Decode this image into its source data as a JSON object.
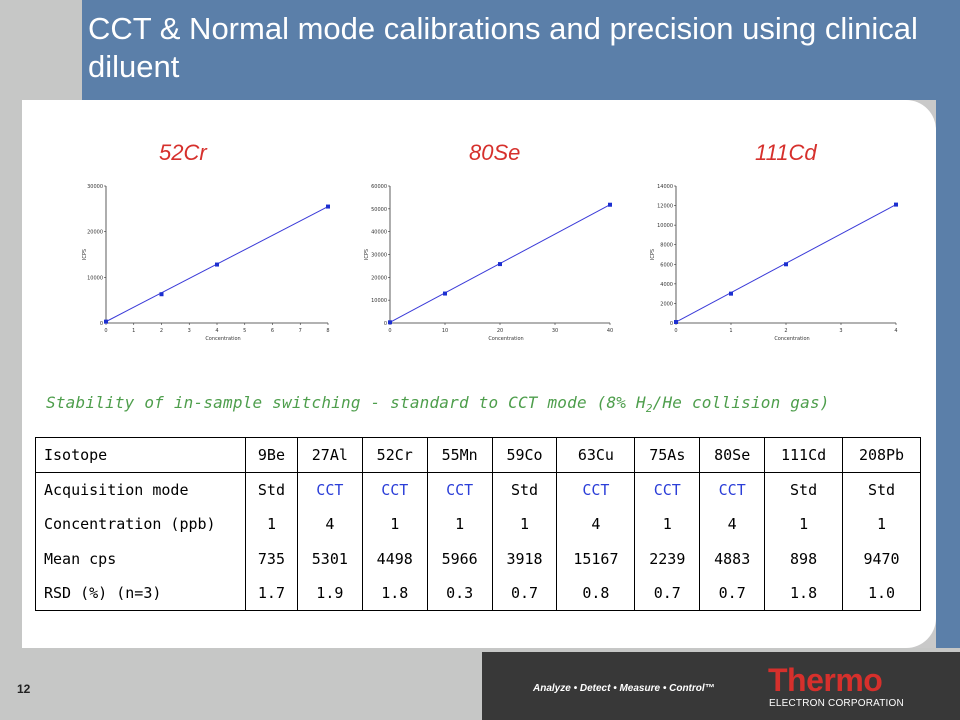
{
  "title": "CCT & Normal mode calibrations and precision using clinical diluent",
  "chart_data": [
    {
      "type": "scatter",
      "title": "52Cr",
      "xlabel": "Concentration",
      "ylabel": "ICPS",
      "xlim": [
        0,
        8
      ],
      "ylim": [
        0,
        30000
      ],
      "x_ticks": [
        "0",
        "1",
        "2",
        "3",
        "4",
        "5",
        "6",
        "7",
        "8"
      ],
      "y_ticks": [
        "0",
        "10000",
        "20000",
        "30000"
      ],
      "y_tick_values": [
        0,
        10000,
        20000,
        30000
      ],
      "x": [
        0,
        2,
        4,
        8
      ],
      "y": [
        300,
        6300,
        12800,
        25500
      ],
      "fit_line": true
    },
    {
      "type": "scatter",
      "title": "80Se",
      "xlabel": "Concentration",
      "ylabel": "ICPS",
      "xlim": [
        0,
        40
      ],
      "ylim": [
        0,
        60000
      ],
      "x_ticks": [
        "0",
        "10",
        "20",
        "30",
        "40"
      ],
      "y_ticks": [
        "0",
        "10000",
        "20000",
        "30000",
        "40000",
        "50000",
        "60000"
      ],
      "y_tick_values": [
        0,
        10000,
        20000,
        30000,
        40000,
        50000,
        60000
      ],
      "x": [
        0,
        10,
        20,
        40
      ],
      "y": [
        300,
        12900,
        25800,
        51800
      ],
      "fit_line": true
    },
    {
      "type": "scatter",
      "title": "111Cd",
      "xlabel": "Concentration",
      "ylabel": "ICPS",
      "xlim": [
        0,
        4
      ],
      "ylim": [
        0,
        14000
      ],
      "x_ticks": [
        "0",
        "1",
        "2",
        "3",
        "4"
      ],
      "y_ticks": [
        "0",
        "2000",
        "4000",
        "6000",
        "8000",
        "10000",
        "12000",
        "14000"
      ],
      "y_tick_values": [
        0,
        2000,
        4000,
        6000,
        8000,
        10000,
        12000,
        14000
      ],
      "x": [
        0,
        1,
        2,
        4
      ],
      "y": [
        100,
        3000,
        6000,
        12100
      ],
      "fit_line": true
    }
  ],
  "subtitle": {
    "before": "Stability of in-sample switching - standard to CCT mode (8% H",
    "sub": "2",
    "after": "/He collision gas)"
  },
  "table": {
    "header": [
      "Isotope",
      "9Be",
      "27Al",
      "52Cr",
      "55Mn",
      "59Co",
      "63Cu",
      "75As",
      "80Se",
      "111Cd",
      "208Pb"
    ],
    "rows": [
      [
        "Acquisition mode",
        "Std",
        "CCT",
        "CCT",
        "CCT",
        "Std",
        "CCT",
        "CCT",
        "CCT",
        "Std",
        "Std"
      ],
      [
        "Concentration (ppb)",
        "1",
        "4",
        "1",
        "1",
        "1",
        "4",
        "1",
        "4",
        "1",
        "1"
      ],
      [
        "Mean cps",
        "735",
        "5301",
        "4498",
        "5966",
        "3918",
        "15167",
        "2239",
        "4883",
        "898",
        "9470"
      ],
      [
        "RSD (%) (n=3)",
        "1.7",
        "1.9",
        "1.8",
        "0.3",
        "0.7",
        "0.8",
        "0.7",
        "0.7",
        "1.8",
        "1.0"
      ]
    ]
  },
  "footer": {
    "page_number": "12",
    "tagline": "Analyze • Detect • Measure • Control™",
    "logo": "Thermo",
    "logo_sub": "ELECTRON CORPORATION"
  },
  "colors": {
    "title_bar": "#5b7fa9",
    "chart_label": "#d6302c",
    "subtitle": "#4e9e4c",
    "cct": "#2b3ed8",
    "logo": "#d6302c"
  }
}
